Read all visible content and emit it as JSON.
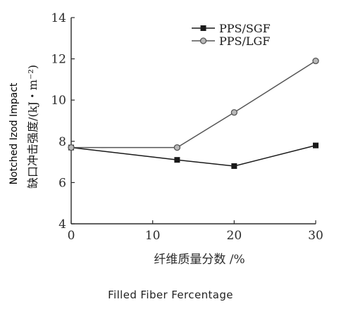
{
  "chart_data": {
    "type": "line",
    "x": [
      0,
      13,
      20,
      30
    ],
    "series": [
      {
        "name": "PPS/SGF",
        "values": [
          7.7,
          7.1,
          6.8,
          7.8
        ],
        "marker": "square",
        "color": "#1a1a1a"
      },
      {
        "name": "PPS/LGF",
        "values": [
          7.7,
          7.7,
          9.4,
          11.9
        ],
        "marker": "circle",
        "color": "#555555"
      }
    ],
    "xlabel": "纤维质量分数 /%",
    "ylabel": "缺口冲击强度/(kJ・m⁻²)",
    "xlim": [
      0,
      30
    ],
    "ylim": [
      4,
      14
    ],
    "x_ticks": [
      "0",
      "10",
      "20",
      "30"
    ],
    "y_ticks": [
      "4",
      "6",
      "8",
      "10",
      "12",
      "14"
    ],
    "grid": false,
    "legend_position": "top-right"
  },
  "annotations": {
    "y_overlay_label": "Notched Izod Impact",
    "x_overlay_label": "Filled Fiber Fercentage"
  }
}
